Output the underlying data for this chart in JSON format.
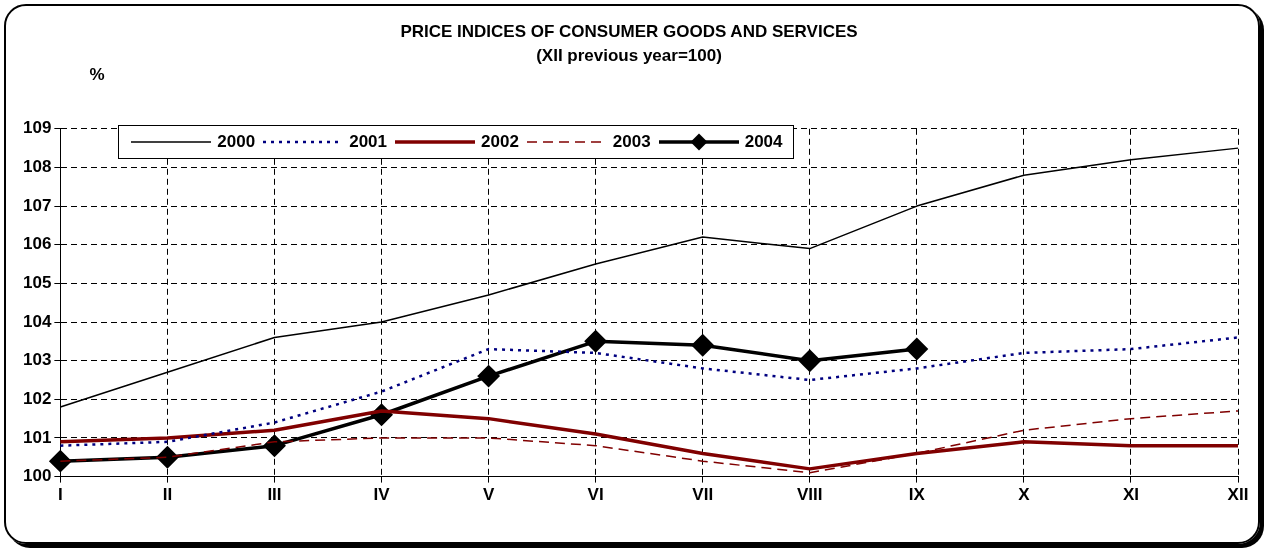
{
  "chart_data": {
    "type": "line",
    "title": "PRICE INDICES OF CONSUMER GOODS AND SERVICES",
    "subtitle": "(XII previous year=100)",
    "ylabel": "%",
    "categories": [
      "I",
      "II",
      "III",
      "IV",
      "V",
      "VI",
      "VII",
      "VIII",
      "IX",
      "X",
      "XI",
      "XII"
    ],
    "ylim": [
      100,
      109
    ],
    "yticks": [
      100,
      101,
      102,
      103,
      104,
      105,
      106,
      107,
      108,
      109
    ],
    "grid": true,
    "legend": "top",
    "series": [
      {
        "name": "2000",
        "color": "#000000",
        "line_style": "solid",
        "marker": "none",
        "values": [
          101.8,
          102.7,
          103.6,
          104.0,
          104.7,
          105.5,
          106.2,
          105.9,
          107.0,
          107.8,
          108.2,
          108.5
        ]
      },
      {
        "name": "2001",
        "color": "#000080",
        "line_style": "dotted",
        "marker": "none",
        "values": [
          100.8,
          100.9,
          101.4,
          102.2,
          103.3,
          103.2,
          102.8,
          102.5,
          102.8,
          103.2,
          103.3,
          103.6
        ]
      },
      {
        "name": "2002",
        "color": "#800000",
        "line_style": "solid",
        "marker": "none",
        "values": [
          100.9,
          101.0,
          101.2,
          101.7,
          101.5,
          101.1,
          100.6,
          100.2,
          100.6,
          100.9,
          100.8,
          100.8
        ]
      },
      {
        "name": "2003",
        "color": "#800000",
        "line_style": "dashed",
        "marker": "none",
        "values": [
          100.4,
          100.5,
          100.9,
          101.0,
          101.0,
          100.8,
          100.4,
          100.1,
          100.6,
          101.2,
          101.5,
          101.7
        ]
      },
      {
        "name": "2004",
        "color": "#000000",
        "line_style": "solid",
        "marker": "diamond",
        "values": [
          100.4,
          100.5,
          100.8,
          101.6,
          102.6,
          103.5,
          103.4,
          103.0,
          103.3,
          null,
          null,
          null
        ]
      }
    ]
  }
}
